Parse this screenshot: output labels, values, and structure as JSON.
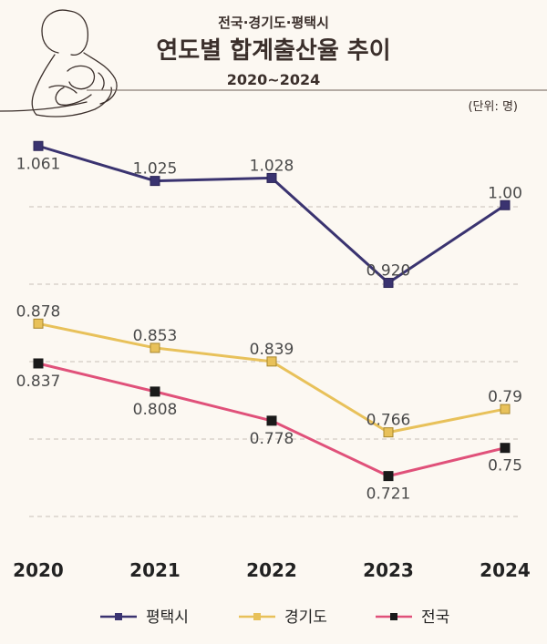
{
  "header": {
    "subtitle": "전국·경기도·평택시",
    "title": "연도별 합계출산율 추이",
    "period": "2020~2024"
  },
  "unit_label": "(단위: 명)",
  "colors": {
    "background": "#fcf8f2",
    "pyeongtaek": "#3a3370",
    "gyeonggi": "#e8c15a",
    "national": "#e0517a",
    "national_marker": "#1a1a1a"
  },
  "illustration_icon": "mother-holding-baby-line-art",
  "chart_data": {
    "type": "line",
    "x": [
      "2020",
      "2021",
      "2022",
      "2023",
      "2024"
    ],
    "series": [
      {
        "name": "평택시",
        "values": [
          1.061,
          1.025,
          1.028,
          0.92,
          1.0
        ],
        "labels": [
          "1.061",
          "1.025",
          "1.028",
          "0.920",
          "1.00"
        ],
        "marker": "square"
      },
      {
        "name": "경기도",
        "values": [
          0.878,
          0.853,
          0.839,
          0.766,
          0.79
        ],
        "labels": [
          "0.878",
          "0.853",
          "0.839",
          "0.766",
          "0.79"
        ],
        "marker": "square"
      },
      {
        "name": "전국",
        "values": [
          0.837,
          0.808,
          0.778,
          0.721,
          0.75
        ],
        "labels": [
          "0.837",
          "0.808",
          "0.778",
          "0.721",
          "0.75"
        ],
        "marker": "square"
      }
    ],
    "grid": "horizontal-dashed",
    "legend": "bottom"
  }
}
